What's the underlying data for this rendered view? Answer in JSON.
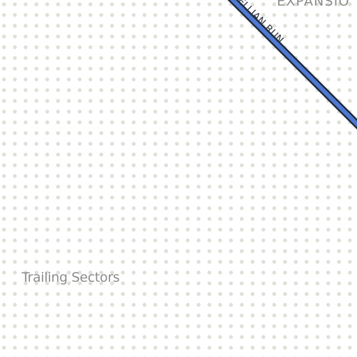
{
  "map": {
    "background_color": "#ffffff",
    "dot_color": "#e0e0d8",
    "road": {
      "name": "ELLIAN RUN",
      "fill_color": "#4f79d3",
      "casing_color": "#1f2a3a",
      "label_color": "#2a3340"
    },
    "labels": {
      "sectors": "Trailing Sectors",
      "expansion": "EXPANSIO"
    }
  }
}
